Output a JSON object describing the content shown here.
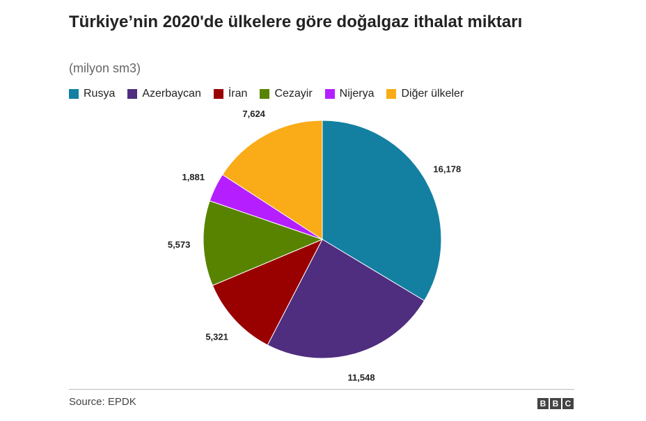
{
  "chart_data": {
    "type": "pie",
    "title": "Türkiye’nin 2020'de ülkelere göre doğalgaz ithalat miktarı",
    "subtitle": "(milyon sm3)",
    "categories": [
      "Rusya",
      "Azerbaycan",
      "İran",
      "Cezayir",
      "Nijerya",
      "Diğer ülkeler"
    ],
    "values": [
      16178,
      11548,
      5321,
      5573,
      1881,
      7624
    ],
    "value_labels": [
      "16,178",
      "11,548",
      "5,321",
      "5,573",
      "1,881",
      "7,624"
    ],
    "colors": [
      "#1380A1",
      "#4F2D7F",
      "#990000",
      "#588300",
      "#B51FFF",
      "#FAAB18"
    ],
    "legend_position": "top-left",
    "start_angle": "12 o'clock",
    "direction": "clockwise"
  },
  "source": "Source: EPDK",
  "logo": [
    "B",
    "B",
    "C"
  ]
}
